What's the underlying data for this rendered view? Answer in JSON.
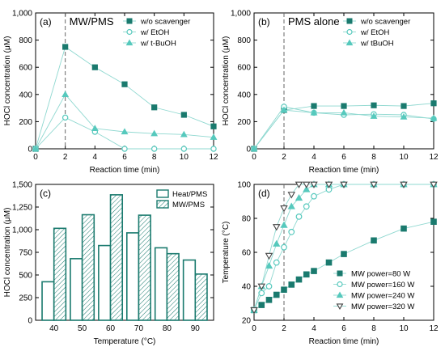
{
  "colors": {
    "teal": "#1a7a6e",
    "light": "#56c9bd",
    "line": "#8fd8d0",
    "gray": "#666666"
  },
  "chart_data": [
    {
      "panel": "(a)",
      "type": "line",
      "annotation": "MW/PMS",
      "xlabel": "Reaction time (min)",
      "ylabel": "HOCl concentration (μM)",
      "xlim": [
        0,
        12
      ],
      "ylim": [
        0,
        1000
      ],
      "xticks": [
        0,
        2,
        4,
        6,
        8,
        10,
        12
      ],
      "yticks": [
        0,
        200,
        400,
        600,
        800,
        1000
      ],
      "vline": 2,
      "legend": "top-right",
      "series": [
        {
          "name": "w/o scavenger",
          "marker": "square",
          "x": [
            0,
            2,
            4,
            6,
            8,
            10,
            12
          ],
          "y": [
            0,
            750,
            600,
            475,
            305,
            250,
            165
          ]
        },
        {
          "name": "w/ EtOH",
          "marker": "circle-open",
          "x": [
            0,
            2,
            4,
            6,
            8,
            10,
            12
          ],
          "y": [
            0,
            230,
            125,
            0,
            0,
            0,
            0
          ]
        },
        {
          "name": "w/ t-BuOH",
          "marker": "triangle",
          "x": [
            0,
            2,
            4,
            6,
            8,
            10,
            12
          ],
          "y": [
            0,
            400,
            150,
            125,
            112,
            105,
            85
          ]
        }
      ]
    },
    {
      "panel": "(b)",
      "type": "line",
      "annotation": "PMS alone",
      "xlabel": "Reaction time (min)",
      "ylabel": "HOCl concentration (μM)",
      "xlim": [
        0,
        12
      ],
      "ylim": [
        0,
        1000
      ],
      "xticks": [
        0,
        2,
        4,
        6,
        8,
        10,
        12
      ],
      "yticks": [
        0,
        200,
        400,
        600,
        800,
        1000
      ],
      "vline": 2,
      "legend": "top-right",
      "series": [
        {
          "name": "w/o scavenger",
          "marker": "square",
          "x": [
            0,
            2,
            4,
            6,
            8,
            10,
            12
          ],
          "y": [
            0,
            285,
            315,
            315,
            320,
            315,
            335
          ]
        },
        {
          "name": "w/ EtOH",
          "marker": "circle-open",
          "x": [
            0,
            2,
            4,
            6,
            8,
            10,
            12
          ],
          "y": [
            0,
            310,
            265,
            250,
            255,
            250,
            220
          ]
        },
        {
          "name": "w/ tBuOH",
          "marker": "triangle",
          "x": [
            0,
            2,
            4,
            6,
            8,
            10,
            12
          ],
          "y": [
            0,
            285,
            265,
            265,
            240,
            235,
            225
          ]
        }
      ]
    },
    {
      "panel": "(c)",
      "type": "bar",
      "xlabel": "Temperature (°C)",
      "ylabel": "HOCl concentration (μM)",
      "ylim": [
        0,
        1500
      ],
      "yticks": [
        0,
        250,
        500,
        750,
        1000,
        1250,
        1500
      ],
      "categories": [
        "40",
        "50",
        "60",
        "70",
        "80",
        "90"
      ],
      "legend": "top-right",
      "series": [
        {
          "name": "Heat/PMS",
          "values": [
            425,
            680,
            825,
            965,
            800,
            665
          ]
        },
        {
          "name": "MW/PMS",
          "values": [
            1015,
            1165,
            1385,
            1160,
            735,
            510
          ]
        }
      ]
    },
    {
      "panel": "(d)",
      "type": "line",
      "xlabel": "Reaction time (min)",
      "ylabel": "Temperature (°C)",
      "xlim": [
        0,
        12
      ],
      "ylim": [
        20,
        100
      ],
      "xticks": [
        0,
        2,
        4,
        6,
        8,
        10,
        12
      ],
      "yticks": [
        20,
        40,
        60,
        80,
        100
      ],
      "vline": 2,
      "legend": "bottom-right",
      "series": [
        {
          "name": "MW power=80 W",
          "marker": "square",
          "x": [
            0,
            0.5,
            1,
            1.5,
            2,
            2.5,
            3,
            3.5,
            4,
            5,
            6,
            8,
            10,
            12
          ],
          "y": [
            26,
            29,
            32,
            35,
            38,
            41,
            44,
            47,
            49,
            54,
            59,
            67,
            74,
            78
          ]
        },
        {
          "name": "MW power=160 W",
          "marker": "circle-open",
          "x": [
            0,
            0.5,
            1,
            1.5,
            2,
            2.5,
            3,
            3.5,
            4,
            5,
            6,
            8,
            10,
            12
          ],
          "y": [
            26,
            36,
            40,
            54,
            63,
            72,
            81,
            87,
            93,
            97,
            100,
            100,
            100,
            100
          ]
        },
        {
          "name": "MW power=240 W",
          "marker": "triangle",
          "x": [
            0,
            0.5,
            1,
            1.5,
            2,
            2.5,
            3,
            3.5,
            4,
            5,
            6,
            8,
            10,
            12
          ],
          "y": [
            26,
            40,
            52,
            65,
            76,
            87,
            92,
            97,
            100,
            100,
            100,
            100,
            100,
            100
          ]
        },
        {
          "name": "MW power=320 W",
          "marker": "triangle-down-open",
          "x": [
            0,
            0.5,
            1,
            1.5,
            2,
            2.5,
            3,
            3.5,
            4,
            5,
            6,
            8,
            10,
            12
          ],
          "y": [
            26,
            40,
            58,
            75,
            86,
            94,
            100,
            100,
            100,
            100,
            100,
            100,
            100,
            100
          ]
        }
      ]
    }
  ]
}
